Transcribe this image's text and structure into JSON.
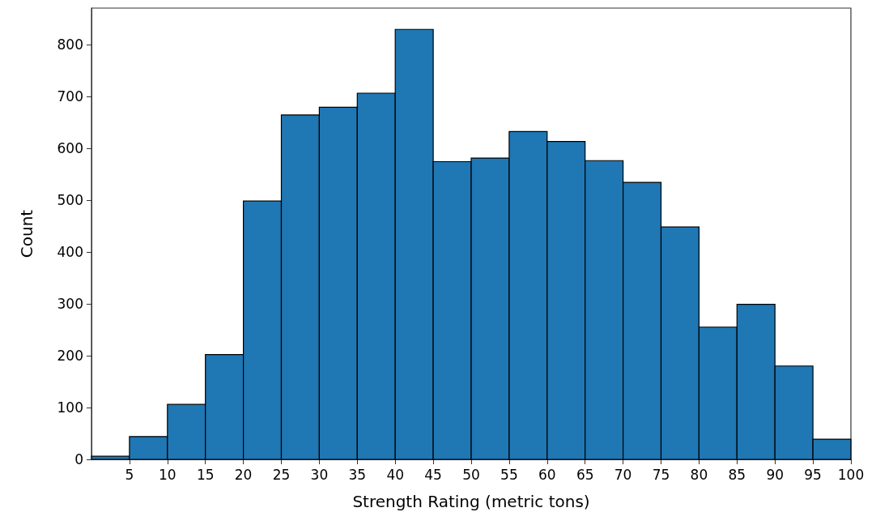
{
  "chart_data": {
    "type": "histogram",
    "xlabel": "Strength Rating (metric tons)",
    "ylabel": "Count",
    "color": "#1f77b4",
    "bins": [
      0,
      5,
      10,
      15,
      20,
      25,
      30,
      35,
      40,
      45,
      50,
      55,
      60,
      65,
      70,
      75,
      80,
      85,
      90,
      95,
      100
    ],
    "values": [
      6,
      44,
      106,
      202,
      498,
      664,
      679,
      706,
      829,
      574,
      581,
      632,
      613,
      576,
      534,
      448,
      255,
      299,
      180,
      39
    ],
    "xlim": [
      0,
      100
    ],
    "xticks": [
      5,
      10,
      15,
      20,
      25,
      30,
      35,
      40,
      45,
      50,
      55,
      60,
      65,
      70,
      75,
      80,
      85,
      90,
      95,
      100
    ],
    "ylim": [
      0,
      870
    ],
    "yticks": [
      0,
      100,
      200,
      300,
      400,
      500,
      600,
      700,
      800
    ],
    "grid": false
  }
}
